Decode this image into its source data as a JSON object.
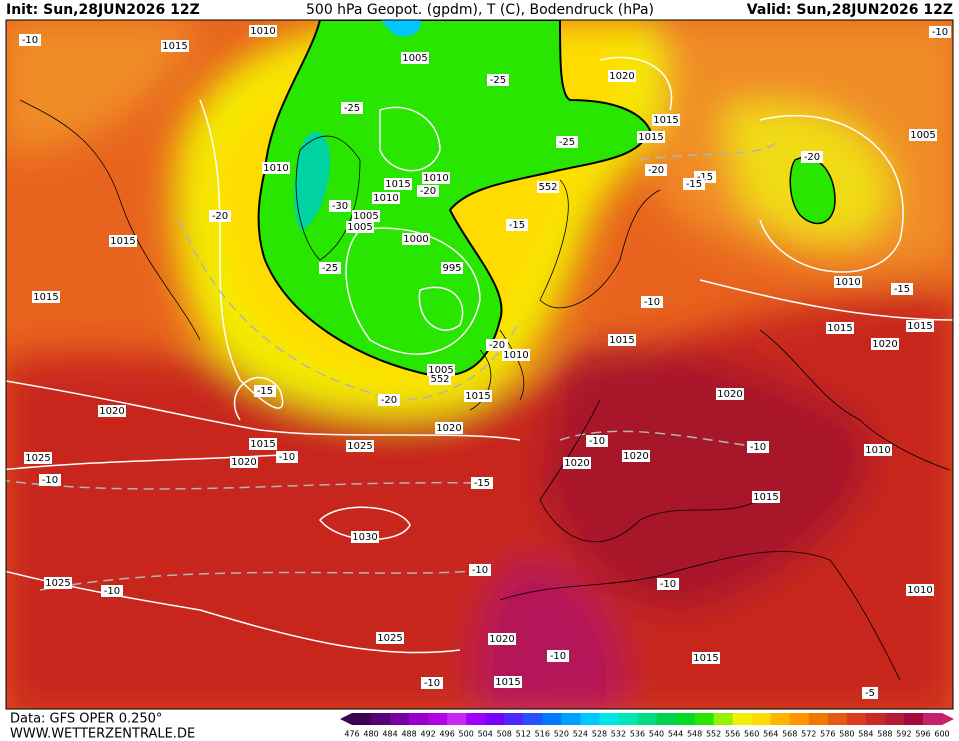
{
  "header": {
    "init": "Init: Sun,28JUN2026 12Z",
    "title": "500 hPa Geopot. (gpdm), T (C), Bodendruck (hPa)",
    "valid": "Valid: Sun,28JUN2026 12Z"
  },
  "footer": {
    "data": "Data: GFS OPER 0.250°",
    "site": "WWW.WETTERZENTRALE.DE"
  },
  "scale": {
    "labels": [
      "476",
      "480",
      "484",
      "488",
      "492",
      "496",
      "500",
      "504",
      "508",
      "512",
      "516",
      "520",
      "524",
      "528",
      "532",
      "536",
      "540",
      "544",
      "548",
      "552",
      "556",
      "560",
      "564",
      "568",
      "572",
      "576",
      "580",
      "584",
      "588",
      "592",
      "596",
      "600"
    ],
    "colors": [
      "#3c0050",
      "#5a0078",
      "#7800a0",
      "#9600c8",
      "#b400e6",
      "#c828f0",
      "#a000ff",
      "#7800ff",
      "#5028ff",
      "#2850ff",
      "#0078ff",
      "#00a0ff",
      "#00c8ff",
      "#00e6e6",
      "#00e6b4",
      "#00dc82",
      "#00d250",
      "#00dc28",
      "#28e600",
      "#96f000",
      "#f0f000",
      "#ffdc00",
      "#ffb400",
      "#ff9600",
      "#f07800",
      "#e65a14",
      "#dc3c1e",
      "#c82828",
      "#b41e32",
      "#a00a3c",
      "#c81e6e"
    ]
  },
  "map": {
    "labels": [
      "1010",
      "-10",
      "-10",
      "1015",
      "1005",
      "-25",
      "1020",
      "-25",
      "1015",
      "1015",
      "-25",
      "1005",
      "-20",
      "1010",
      "-20",
      "-15",
      "-15",
      "1010",
      "1015",
      "-20",
      "552",
      "1010",
      "-30",
      "-20",
      "1005",
      "1005",
      "-15",
      "1015",
      "1000",
      "-25",
      "995",
      "1010",
      "-15",
      "1015",
      "-10",
      "1015",
      "1015",
      "1015",
      "-20",
      "1010",
      "1020",
      "1005",
      "552",
      "1015",
      "-15",
      "-20",
      "1020",
      "1020",
      "1020",
      "-10",
      "1015",
      "1025",
      "-10",
      "1010",
      "1025",
      "1020",
      "-10",
      "1020",
      "1020",
      "-10",
      "-15",
      "1015",
      "1030",
      "-10",
      "1025",
      "-10",
      "-10",
      "1010",
      "1025",
      "1020",
      "-10",
      "1015",
      "-10",
      "1015",
      "-5"
    ]
  }
}
